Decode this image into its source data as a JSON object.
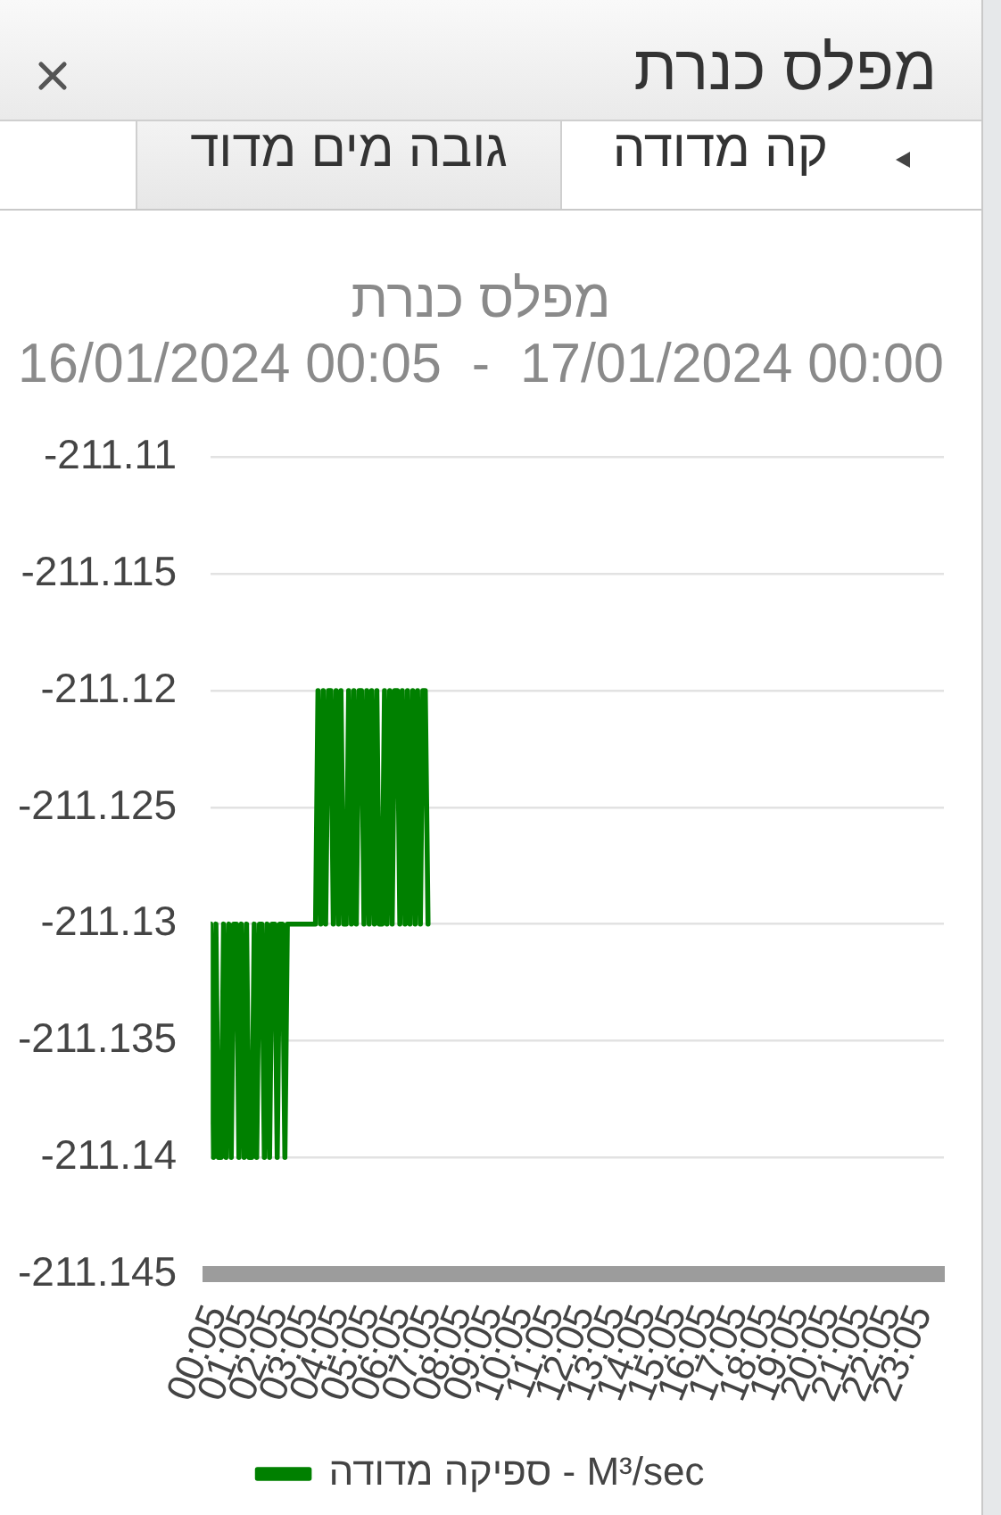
{
  "chart_data": {
    "type": "line",
    "title": "מפלס כנרת",
    "subtitle": "16/01/2024 00:05  -  17/01/2024 00:00",
    "annotations": [
      "גובה מים מדוד",
      "קה מדודה"
    ],
    "x": [
      0.08,
      0.17,
      0.25,
      0.33,
      0.42,
      0.5,
      0.58,
      0.67,
      0.75,
      0.83,
      0.92,
      1,
      1.08,
      1.17,
      1.25,
      1.33,
      1.42,
      1.5,
      1.58,
      1.67,
      1.75,
      1.83,
      1.92,
      2,
      2.08,
      2.17,
      2.25,
      2.33,
      2.42,
      2.5,
      2.58,
      2.67,
      2.75,
      2.83,
      2.92,
      3,
      3.08,
      3.17,
      3.25,
      3.33,
      3.42,
      3.5,
      3.58,
      3.67,
      3.75,
      3.83,
      3.92,
      4,
      4.08,
      4.17,
      4.25,
      4.33,
      4.42,
      4.5,
      4.58,
      4.67,
      4.75,
      4.83,
      4.92,
      5,
      5.08,
      5.17,
      5.25,
      5.33,
      5.42,
      5.5,
      5.58,
      5.67,
      5.75,
      5.83,
      5.92,
      6,
      6.08,
      6.17,
      6.25,
      6.33,
      6.42,
      6.5,
      6.58,
      6.67,
      6.75,
      6.83,
      6.92,
      7,
      7.08,
      7.17
    ],
    "series": [
      {
        "name": "ספיקה מדודה - M³/sec",
        "color": "#008000",
        "values": [
          -211.13,
          -211.14,
          -211.13,
          -211.14,
          -211.14,
          -211.13,
          -211.14,
          -211.13,
          -211.14,
          -211.13,
          -211.13,
          -211.14,
          -211.13,
          -211.14,
          -211.13,
          -211.14,
          -211.14,
          -211.13,
          -211.14,
          -211.13,
          -211.13,
          -211.14,
          -211.13,
          -211.14,
          -211.13,
          -211.13,
          -211.14,
          -211.13,
          -211.13,
          -211.14,
          -211.13,
          -211.13,
          -211.13,
          -211.13,
          -211.13,
          -211.13,
          -211.13,
          -211.13,
          -211.13,
          -211.13,
          -211.13,
          -211.13,
          -211.12,
          -211.13,
          -211.12,
          -211.13,
          -211.12,
          -211.12,
          -211.13,
          -211.12,
          -211.13,
          -211.12,
          -211.13,
          -211.13,
          -211.12,
          -211.13,
          -211.12,
          -211.13,
          -211.12,
          -211.12,
          -211.13,
          -211.12,
          -211.13,
          -211.12,
          -211.13,
          -211.12,
          -211.13,
          -211.13,
          -211.12,
          -211.13,
          -211.12,
          -211.13,
          -211.12,
          -211.12,
          -211.13,
          -211.12,
          -211.13,
          -211.12,
          -211.13,
          -211.12,
          -211.13,
          -211.12,
          -211.13,
          -211.12,
          -211.12,
          -211.13
        ]
      }
    ],
    "xlim": [
      0.08,
      24
    ],
    "xticks": [
      {
        "value": 0.08,
        "label": "00:05"
      },
      {
        "value": 1.08,
        "label": "01:05"
      },
      {
        "value": 2.08,
        "label": "02:05"
      },
      {
        "value": 3.08,
        "label": "03:05"
      },
      {
        "value": 4.08,
        "label": "04:05"
      },
      {
        "value": 5.08,
        "label": "05:05"
      },
      {
        "value": 6.08,
        "label": "06:05"
      },
      {
        "value": 7.08,
        "label": "07:05"
      },
      {
        "value": 8.08,
        "label": "08:05"
      },
      {
        "value": 9.08,
        "label": "09:05"
      },
      {
        "value": 10.08,
        "label": "10:05"
      },
      {
        "value": 11.08,
        "label": "11:05"
      },
      {
        "value": 12.08,
        "label": "12:05"
      },
      {
        "value": 13.08,
        "label": "13:05"
      },
      {
        "value": 14.08,
        "label": "14:05"
      },
      {
        "value": 15.08,
        "label": "15:05"
      },
      {
        "value": 16.08,
        "label": "16:05"
      },
      {
        "value": 17.08,
        "label": "17:05"
      },
      {
        "value": 18.08,
        "label": "18:05"
      },
      {
        "value": 19.08,
        "label": "19:05"
      },
      {
        "value": 20.08,
        "label": "20:05"
      },
      {
        "value": 21.08,
        "label": "21:05"
      },
      {
        "value": 22.08,
        "label": "22:05"
      },
      {
        "value": 23.08,
        "label": "23:05"
      }
    ],
    "ylim": [
      -211.145,
      -211.11
    ],
    "yticks": [
      -211.145,
      -211.14,
      -211.135,
      -211.13,
      -211.125,
      -211.12,
      -211.115,
      -211.11
    ],
    "grid": "y",
    "legend": "bottom",
    "marker": "none"
  }
}
